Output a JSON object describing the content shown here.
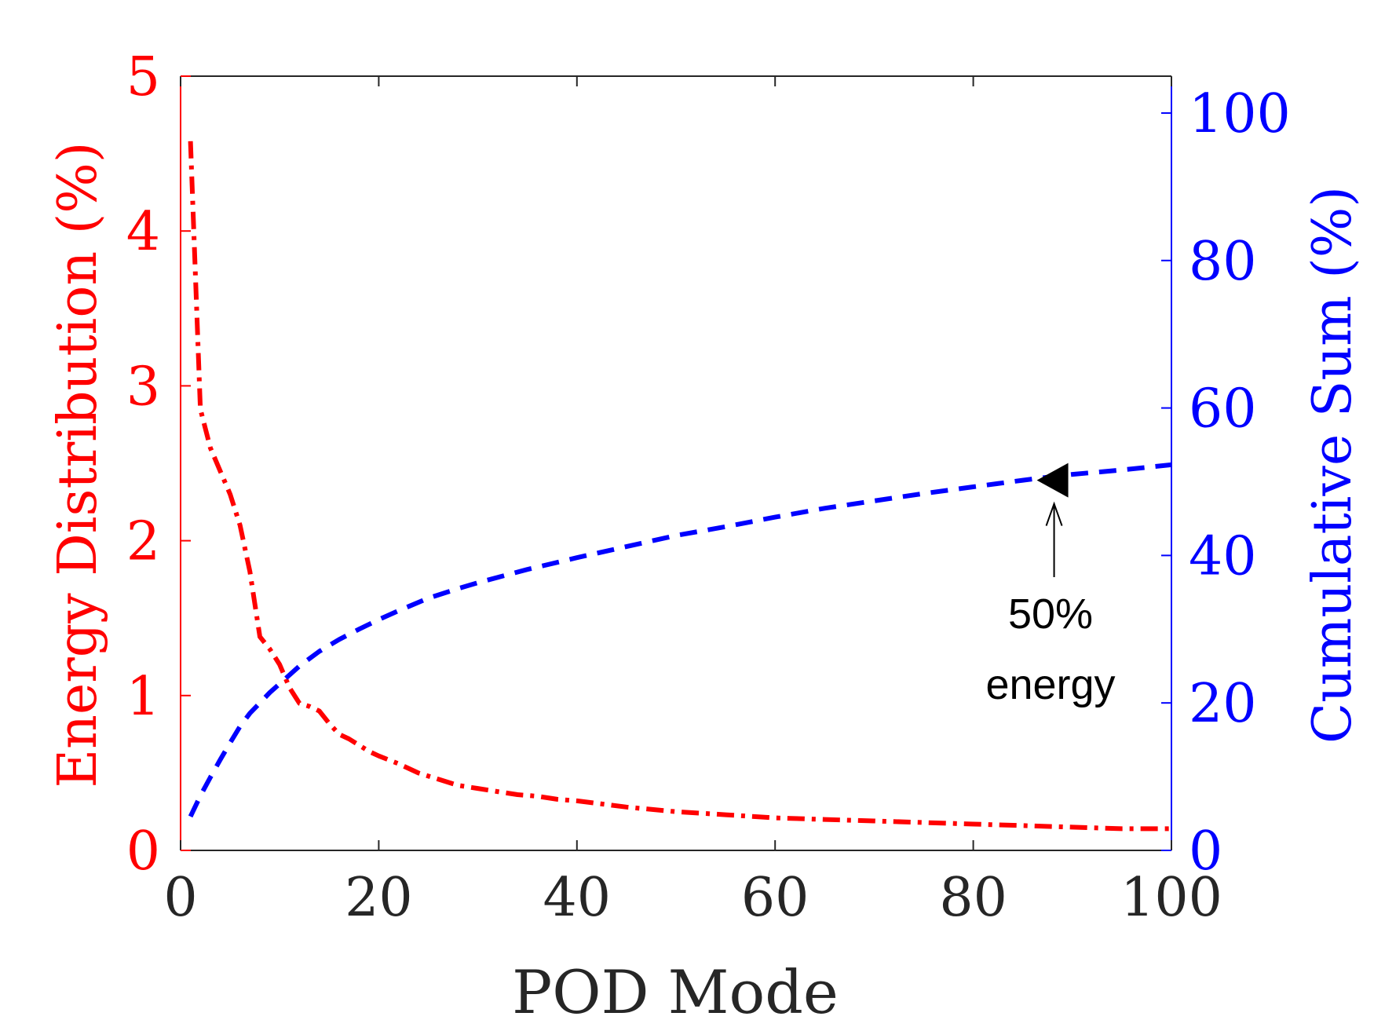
{
  "chart_data": {
    "type": "line",
    "title": "",
    "xlabel": "POD Mode",
    "ylabel_left": "Energy Distribution (%)",
    "ylabel_right": "Cumulative Sum (%)",
    "xlim": [
      0,
      100
    ],
    "ylim_left": [
      0,
      5
    ],
    "ylim_right": [
      0,
      105
    ],
    "x_ticks": [
      0,
      20,
      40,
      60,
      80,
      100
    ],
    "y_ticks_left": [
      0,
      1,
      2,
      3,
      4,
      5
    ],
    "y_ticks_right": [
      0,
      20,
      40,
      60,
      80,
      100
    ],
    "colors": {
      "left_axis": "#ff0000",
      "right_axis": "#0000ff",
      "frame": "#262626",
      "annotation": "#000000"
    },
    "series": [
      {
        "name": "Energy Distribution",
        "axis": "left",
        "color": "#ff0000",
        "style": "dash-dot",
        "x": [
          1,
          2,
          3,
          4,
          5,
          6,
          7,
          8,
          9,
          10,
          11,
          12,
          13,
          14,
          15,
          16,
          17,
          18,
          19,
          20,
          22,
          24,
          26,
          28,
          30,
          32,
          34,
          36,
          38,
          40,
          45,
          50,
          55,
          60,
          65,
          70,
          75,
          80,
          85,
          90,
          95,
          100
        ],
        "values": [
          4.58,
          2.85,
          2.6,
          2.45,
          2.3,
          2.1,
          1.8,
          1.38,
          1.3,
          1.2,
          1.05,
          0.95,
          0.93,
          0.9,
          0.82,
          0.75,
          0.72,
          0.68,
          0.64,
          0.61,
          0.56,
          0.5,
          0.46,
          0.42,
          0.4,
          0.38,
          0.36,
          0.35,
          0.33,
          0.32,
          0.28,
          0.25,
          0.23,
          0.21,
          0.2,
          0.19,
          0.18,
          0.17,
          0.16,
          0.15,
          0.14,
          0.14
        ]
      },
      {
        "name": "Cumulative Sum",
        "axis": "right",
        "color": "#0000ff",
        "style": "dash",
        "x": [
          1,
          2,
          3,
          4,
          5,
          6,
          7,
          8,
          9,
          10,
          12,
          14,
          16,
          18,
          20,
          22,
          25,
          28,
          30,
          35,
          40,
          45,
          50,
          55,
          60,
          65,
          70,
          75,
          80,
          85,
          88,
          90,
          95,
          100
        ],
        "values": [
          4.6,
          7.4,
          9.9,
          12.3,
          14.6,
          16.8,
          18.6,
          20.0,
          21.4,
          22.6,
          25.0,
          27.0,
          28.6,
          30.0,
          31.3,
          32.5,
          34.2,
          35.5,
          36.3,
          38.1,
          39.7,
          41.2,
          42.7,
          43.9,
          45.2,
          46.4,
          47.4,
          48.4,
          49.3,
          50.2,
          50.7,
          51.0,
          51.6,
          52.3
        ]
      }
    ],
    "annotations": [
      {
        "text_line1": "50%",
        "text_line2": "energy",
        "x": 88,
        "y_right": 50.2
      }
    ]
  }
}
